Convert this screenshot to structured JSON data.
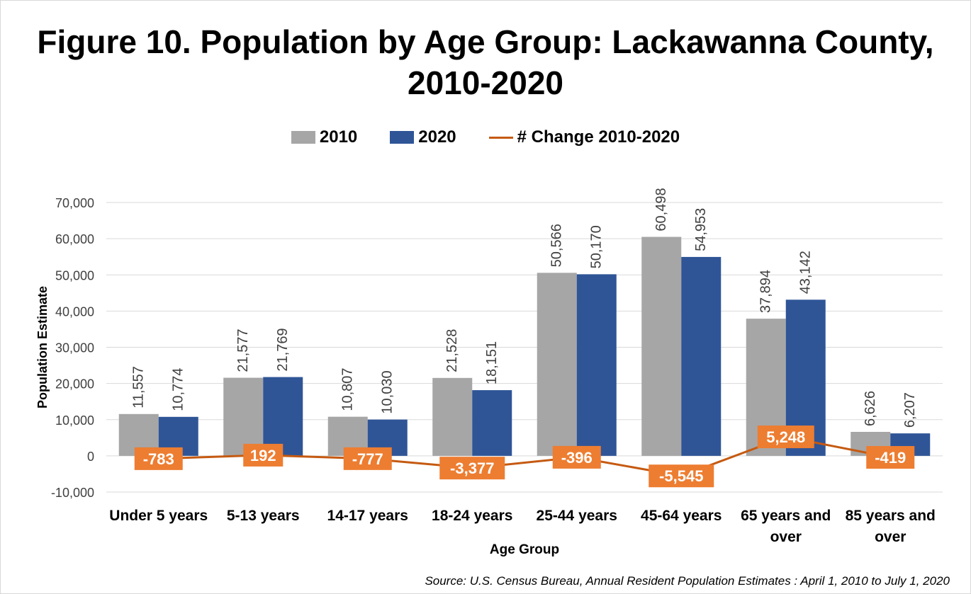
{
  "title": "Figure 10. Population by Age Group: Lackawanna County, 2010-2020",
  "source": "Source: U.S. Census Bureau, Annual Resident Population Estimates : April 1, 2010 to July 1, 2020",
  "colors": {
    "series2010": "#a6a6a6",
    "series2020": "#2f5597",
    "change": "#c55a11",
    "changeLabelBg": "#ed7d31",
    "grid": "#d9d9d9"
  },
  "chart_data": {
    "type": "bar",
    "title": "Figure 10. Population by Age Group: Lackawanna County, 2010-2020",
    "xlabel": "Age Group",
    "ylabel": "Population Estimate",
    "ylim": [
      -10000,
      70000
    ],
    "yticks": [
      70000,
      60000,
      50000,
      40000,
      30000,
      20000,
      10000,
      0,
      -10000
    ],
    "ytick_labels": [
      "70,000",
      "60,000",
      "50,000",
      "40,000",
      "30,000",
      "20,000",
      "10,000",
      "0",
      "-10,000"
    ],
    "grid": true,
    "legend_position": "top",
    "categories": [
      [
        "Under 5 years"
      ],
      [
        "5-13 years"
      ],
      [
        "14-17 years"
      ],
      [
        "18-24 years"
      ],
      [
        "25-44 years"
      ],
      [
        "45-64 years"
      ],
      [
        "65 years and",
        "over"
      ],
      [
        "85 years and",
        "over"
      ]
    ],
    "series": [
      {
        "name": "2010",
        "type": "bar",
        "values": [
          11557,
          21577,
          10807,
          21528,
          50566,
          60498,
          37894,
          6626
        ],
        "labels": [
          "11,557",
          "21,577",
          "10,807",
          "21,528",
          "50,566",
          "60,498",
          "37,894",
          "6,626"
        ]
      },
      {
        "name": "2020",
        "type": "bar",
        "values": [
          10774,
          21769,
          10030,
          18151,
          50170,
          54953,
          43142,
          6207
        ],
        "labels": [
          "10,774",
          "21,769",
          "10,030",
          "18,151",
          "50,170",
          "54,953",
          "43,142",
          "6,207"
        ]
      },
      {
        "name": "# Change 2010-2020",
        "type": "line",
        "values": [
          -783,
          192,
          -777,
          -3377,
          -396,
          -5545,
          5248,
          -419
        ],
        "labels": [
          "-783",
          "192",
          "-777",
          "-3,377",
          "-396",
          "-5,545",
          "5,248",
          "-419"
        ]
      }
    ]
  }
}
